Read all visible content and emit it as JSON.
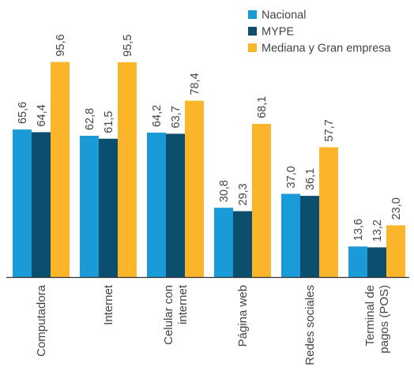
{
  "chart_data": {
    "type": "bar",
    "categories": [
      [
        "Computadora"
      ],
      [
        "Internet"
      ],
      [
        "Celular con",
        "internet"
      ],
      [
        "Página web"
      ],
      [
        "Redes sociales"
      ],
      [
        "Terminal de",
        "pagos (POS)"
      ]
    ],
    "series": [
      {
        "name": "Nacional",
        "color": "#1a9ad6",
        "values": [
          65.6,
          62.8,
          64.2,
          30.8,
          37.0,
          13.6
        ],
        "labels": [
          "65,6",
          "62,8",
          "64,2",
          "30,8",
          "37,0",
          "13,6"
        ]
      },
      {
        "name": "MYPE",
        "color": "#0b4e6e",
        "values": [
          64.4,
          61.5,
          63.7,
          29.3,
          36.1,
          13.2
        ],
        "labels": [
          "64,4",
          "61,5",
          "63,7",
          "29,3",
          "36,1",
          "13,2"
        ]
      },
      {
        "name": "Mediana y Gran empresa",
        "color": "#fbb52b",
        "values": [
          95.6,
          95.5,
          78.4,
          68.1,
          57.7,
          23.0
        ],
        "labels": [
          "95,6",
          "95,5",
          "78,4",
          "68,1",
          "57,7",
          "23,0"
        ]
      }
    ],
    "ylim": [
      0,
      100
    ],
    "grid": false,
    "legend": "top-right"
  }
}
